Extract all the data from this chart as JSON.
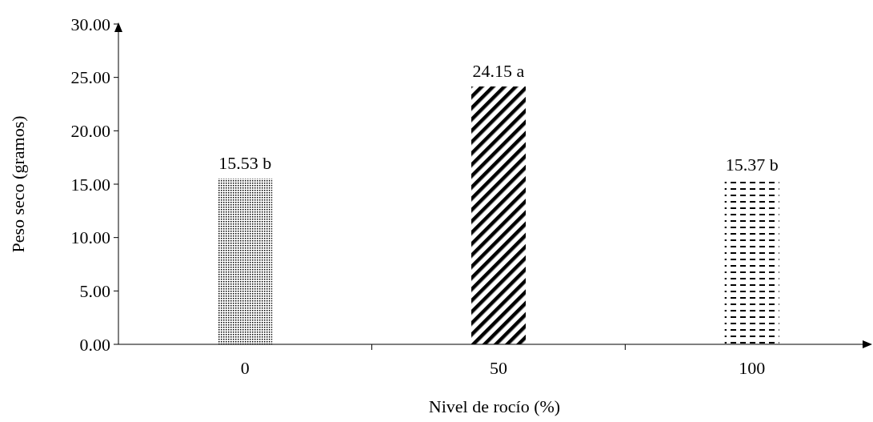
{
  "chart_data": {
    "type": "bar",
    "xlabel": "Nivel de rocío (%)",
    "ylabel": "Peso seco (gramos)",
    "categories": [
      "0",
      "50",
      "100"
    ],
    "values": [
      15.53,
      24.15,
      15.37
    ],
    "colors": [
      "#000000",
      "#000000",
      "#000000"
    ],
    "value_labels": [
      "15.53 b",
      "24.15 a",
      "15.37 b"
    ],
    "ylim": [
      0,
      30
    ],
    "yticks": [
      {
        "value": 0,
        "label": "0.00"
      },
      {
        "value": 5,
        "label": "5.00"
      },
      {
        "value": 10,
        "label": "10.00"
      },
      {
        "value": 15,
        "label": "15.00"
      },
      {
        "value": 20,
        "label": "20.00"
      },
      {
        "value": 25,
        "label": "25.00"
      },
      {
        "value": 30,
        "label": "30.00"
      }
    ],
    "grid": false
  }
}
